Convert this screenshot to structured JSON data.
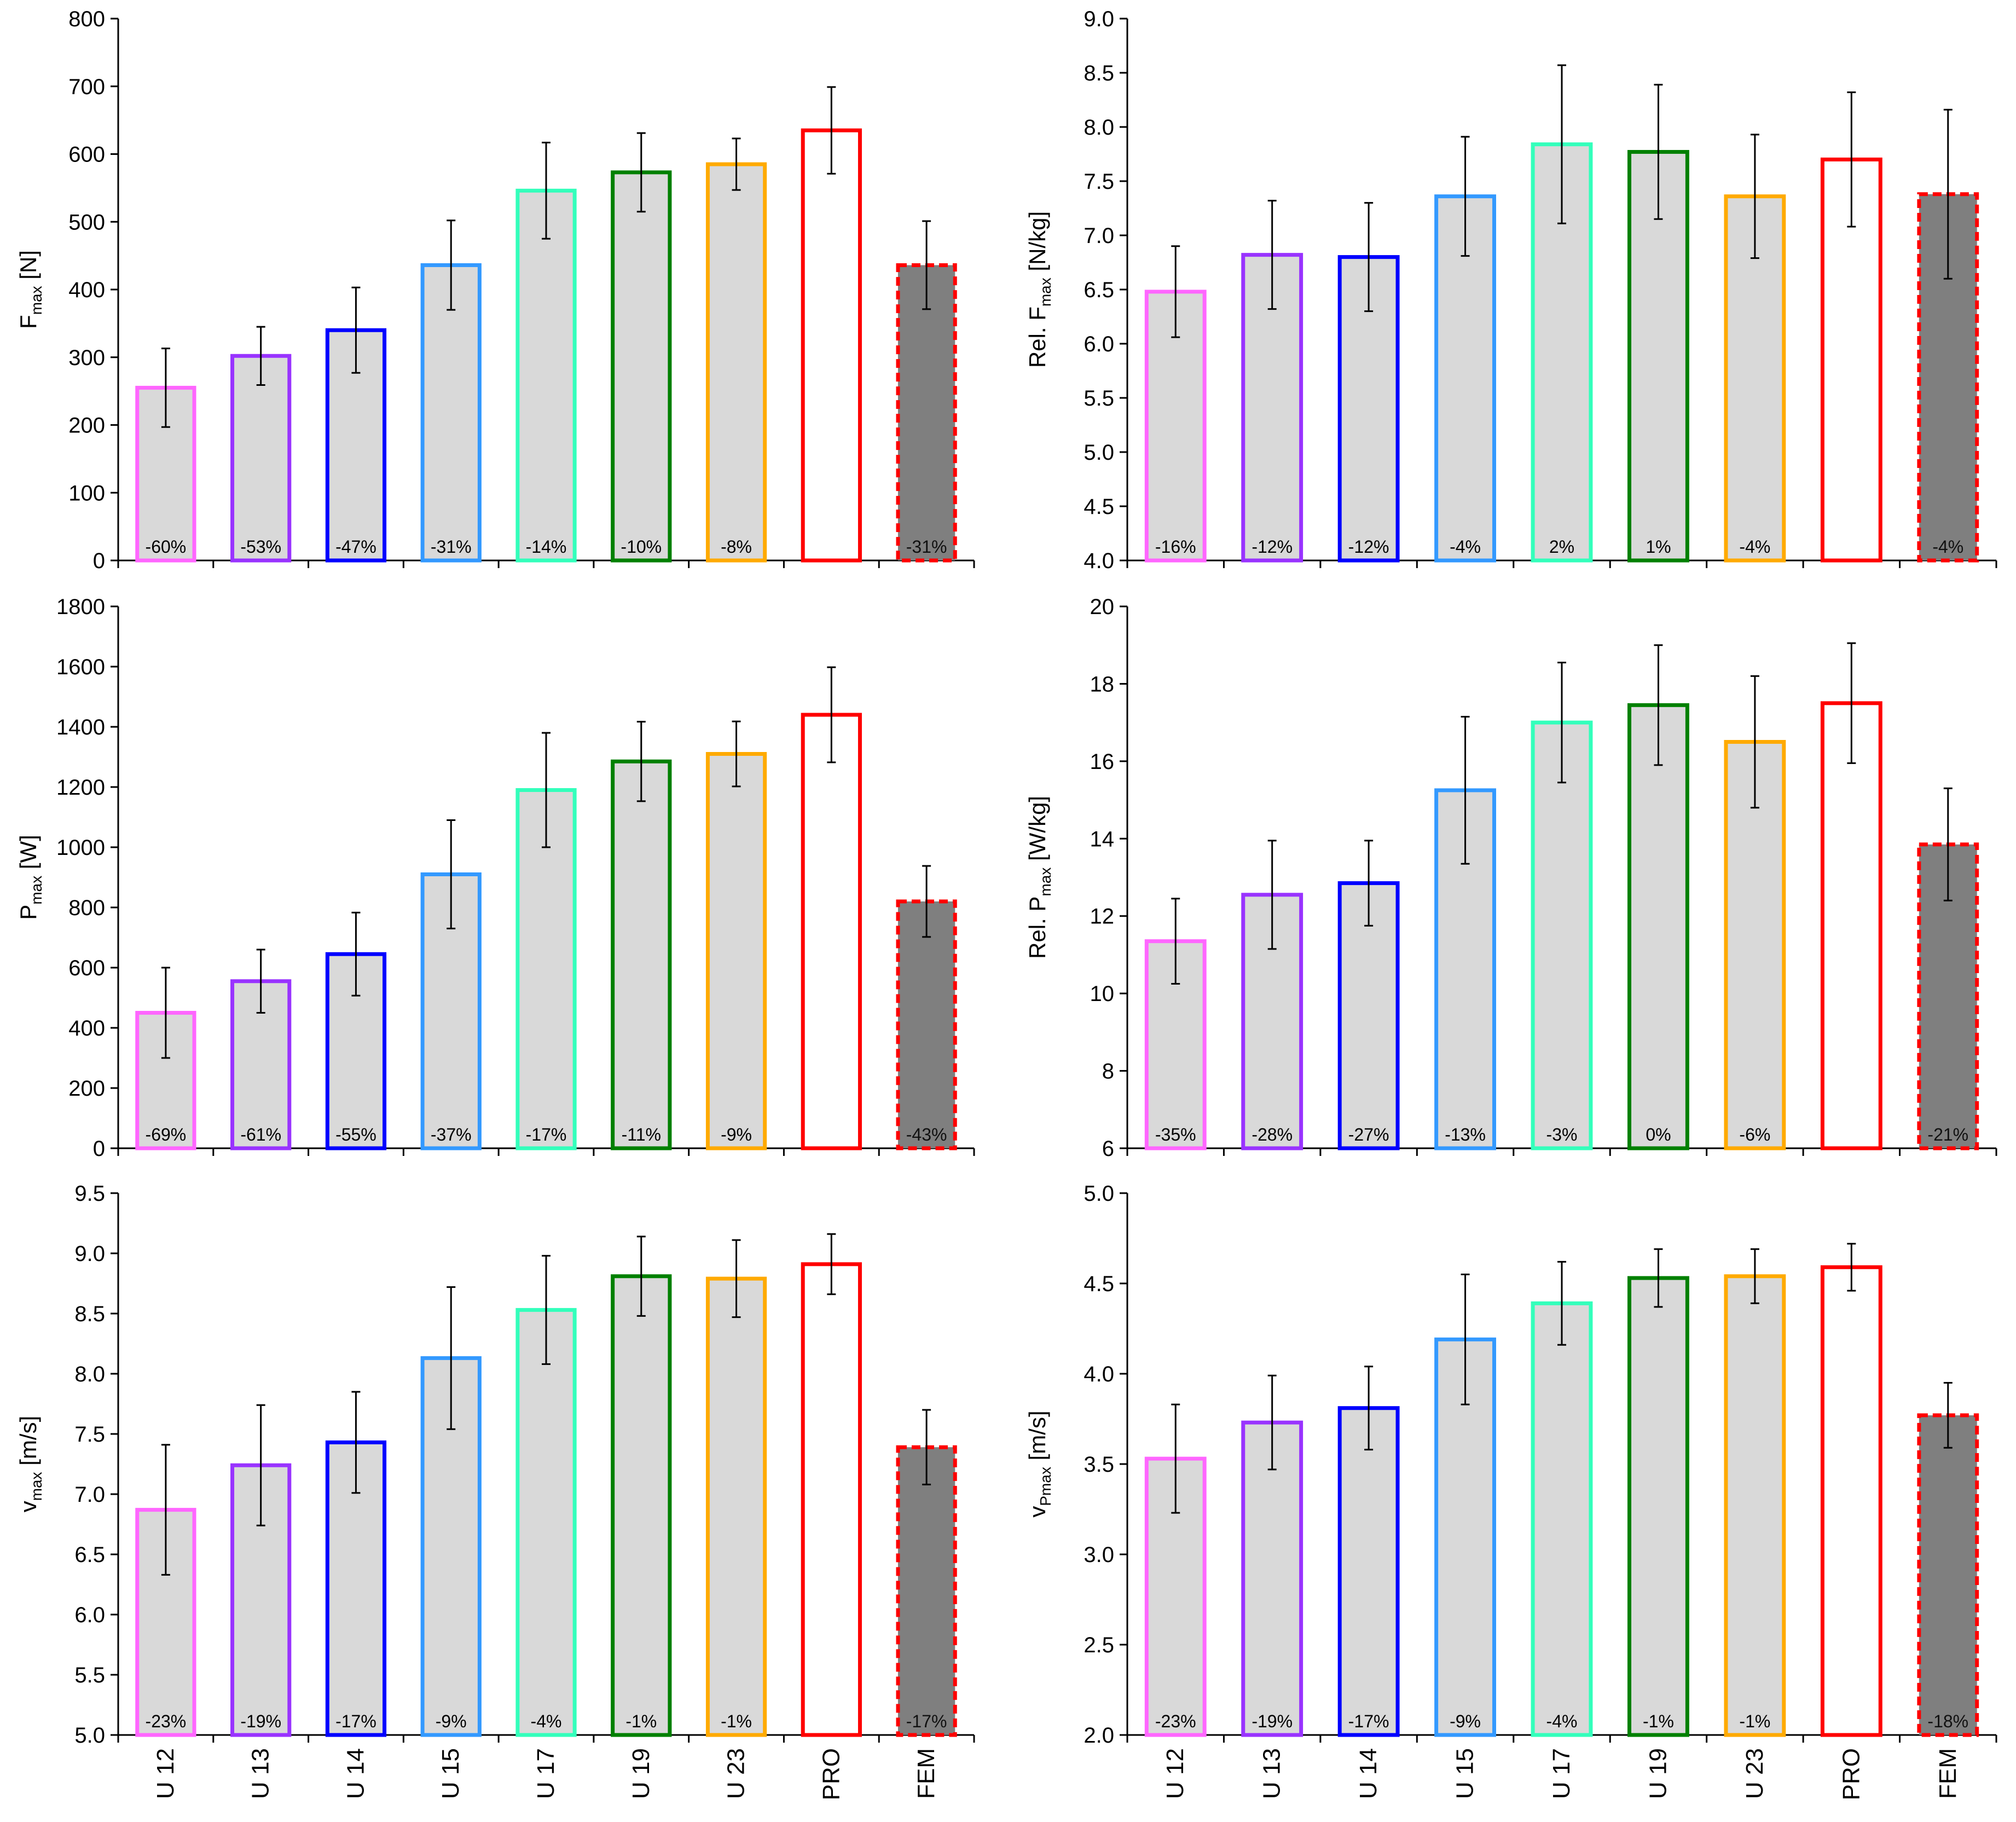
{
  "chart_data": [
    {
      "type": "bar",
      "ylabel": "F_max [N]",
      "ylabel_main": "F",
      "ylabel_sub": "max",
      "ylabel_unit": " [N]",
      "ylim": [
        0,
        800
      ],
      "yticks": [
        "0",
        "100",
        "200",
        "300",
        "400",
        "500",
        "600",
        "700",
        "800"
      ],
      "categories": [
        "U 12",
        "U 13",
        "U 14",
        "U 15",
        "U 17",
        "U 19",
        "U 23",
        "PRO",
        "FEM"
      ],
      "values": [
        255,
        302,
        340,
        436,
        546,
        573,
        585,
        635,
        436
      ],
      "errors": [
        58,
        43,
        63,
        66,
        71,
        58,
        38,
        64,
        65
      ],
      "pct_labels": [
        "-60%",
        "-53%",
        "-47%",
        "-31%",
        "-14%",
        "-10%",
        "-8%",
        "",
        "-31%"
      ]
    },
    {
      "type": "bar",
      "ylabel": "Rel. F_max [N/kg]",
      "ylabel_main": "Rel. F",
      "ylabel_sub": "max",
      "ylabel_unit": " [N/kg]",
      "ylim": [
        4.0,
        9.0
      ],
      "yticks": [
        "4.0",
        "4.5",
        "5.0",
        "5.5",
        "6.0",
        "6.5",
        "7.0",
        "7.5",
        "8.0",
        "8.5",
        "9.0"
      ],
      "categories": [
        "U 12",
        "U 13",
        "U 14",
        "U 15",
        "U 17",
        "U 19",
        "U 23",
        "PRO",
        "FEM"
      ],
      "values": [
        6.48,
        6.82,
        6.8,
        7.36,
        7.84,
        7.77,
        7.36,
        7.7,
        7.38
      ],
      "errors": [
        0.42,
        0.5,
        0.5,
        0.55,
        0.73,
        0.62,
        0.57,
        0.62,
        0.78
      ],
      "pct_labels": [
        "-16%",
        "-12%",
        "-12%",
        "-4%",
        "2%",
        "1%",
        "-4%",
        "",
        "-4%"
      ]
    },
    {
      "type": "bar",
      "ylabel": "P_max [W]",
      "ylabel_main": "P",
      "ylabel_sub": "max",
      "ylabel_unit": " [W]",
      "ylim": [
        0,
        1800
      ],
      "yticks": [
        "0",
        "200",
        "400",
        "600",
        "800",
        "1000",
        "1200",
        "1400",
        "1600",
        "1800"
      ],
      "categories": [
        "U 12",
        "U 13",
        "U 14",
        "U 15",
        "U 17",
        "U 19",
        "U 23",
        "PRO",
        "FEM"
      ],
      "values": [
        450,
        555,
        645,
        910,
        1190,
        1285,
        1310,
        1440,
        820
      ],
      "errors": [
        150,
        105,
        138,
        180,
        190,
        132,
        108,
        158,
        118
      ],
      "pct_labels": [
        "-69%",
        "-61%",
        "-55%",
        "-37%",
        "-17%",
        "-11%",
        "-9%",
        "",
        "-43%"
      ]
    },
    {
      "type": "bar",
      "ylabel": "Rel. P_max [W/kg]",
      "ylabel_main": "Rel. P",
      "ylabel_sub": "max",
      "ylabel_unit": " [W/kg]",
      "ylim": [
        6,
        20
      ],
      "yticks": [
        "6",
        "8",
        "10",
        "12",
        "14",
        "16",
        "18",
        "20"
      ],
      "categories": [
        "U 12",
        "U 13",
        "U 14",
        "U 15",
        "U 17",
        "U 19",
        "U 23",
        "PRO",
        "FEM"
      ],
      "values": [
        11.35,
        12.55,
        12.85,
        15.25,
        17.0,
        17.45,
        16.5,
        17.5,
        13.85
      ],
      "errors": [
        1.1,
        1.4,
        1.1,
        1.9,
        1.55,
        1.55,
        1.7,
        1.55,
        1.45
      ],
      "pct_labels": [
        "-35%",
        "-28%",
        "-27%",
        "-13%",
        "-3%",
        "0%",
        "-6%",
        "",
        "-21%"
      ]
    },
    {
      "type": "bar",
      "ylabel": "v_max [m/s]",
      "ylabel_main": "v",
      "ylabel_sub": "max",
      "ylabel_unit": " [m/s]",
      "ylim": [
        5.0,
        9.5
      ],
      "yticks": [
        "5.0",
        "5.5",
        "6.0",
        "6.5",
        "7.0",
        "7.5",
        "8.0",
        "8.5",
        "9.0",
        "9.5"
      ],
      "categories": [
        "U 12",
        "U 13",
        "U 14",
        "U 15",
        "U 17",
        "U 19",
        "U 23",
        "PRO",
        "FEM"
      ],
      "values": [
        6.87,
        7.24,
        7.43,
        8.13,
        8.53,
        8.81,
        8.79,
        8.91,
        7.39
      ],
      "errors": [
        0.54,
        0.5,
        0.42,
        0.59,
        0.45,
        0.33,
        0.32,
        0.25,
        0.31
      ],
      "pct_labels": [
        "-23%",
        "-19%",
        "-17%",
        "-9%",
        "-4%",
        "-1%",
        "-1%",
        "",
        "-17%"
      ],
      "show_xticks": true
    },
    {
      "type": "bar",
      "ylabel": "v_Pmax [m/s]",
      "ylabel_main": "v",
      "ylabel_sub": "Pmax",
      "ylabel_unit": " [m/s]",
      "ylim": [
        2.0,
        5.0
      ],
      "yticks": [
        "2.0",
        "2.5",
        "3.0",
        "3.5",
        "4.0",
        "4.5",
        "5.0"
      ],
      "categories": [
        "U 12",
        "U 13",
        "U 14",
        "U 15",
        "U 17",
        "U 19",
        "U 23",
        "PRO",
        "FEM"
      ],
      "values": [
        3.53,
        3.73,
        3.81,
        4.19,
        4.39,
        4.53,
        4.54,
        4.59,
        3.77
      ],
      "errors": [
        0.3,
        0.26,
        0.23,
        0.36,
        0.23,
        0.16,
        0.15,
        0.13,
        0.18
      ],
      "pct_labels": [
        "-23%",
        "-19%",
        "-17%",
        "-9%",
        "-4%",
        "-1%",
        "-1%",
        "",
        "-18%"
      ],
      "show_xticks": true
    }
  ],
  "style": {
    "bar_outline_colors": [
      "#ff66ff",
      "#9933ff",
      "#0000ff",
      "#3399ff",
      "#33ffbb",
      "#008000",
      "#ffaa00",
      "#ff0000",
      "#ff0000"
    ],
    "bar_fill_colors": [
      "#d9d9d9",
      "#d9d9d9",
      "#d9d9d9",
      "#d9d9d9",
      "#d9d9d9",
      "#d9d9d9",
      "#d9d9d9",
      "#ffffff",
      "#7f7f7f"
    ],
    "dashed_outline": [
      false,
      false,
      false,
      false,
      false,
      false,
      false,
      false,
      true
    ],
    "axis_color": "#000000",
    "error_bar_color": "#000000",
    "label_color": "#000000"
  }
}
